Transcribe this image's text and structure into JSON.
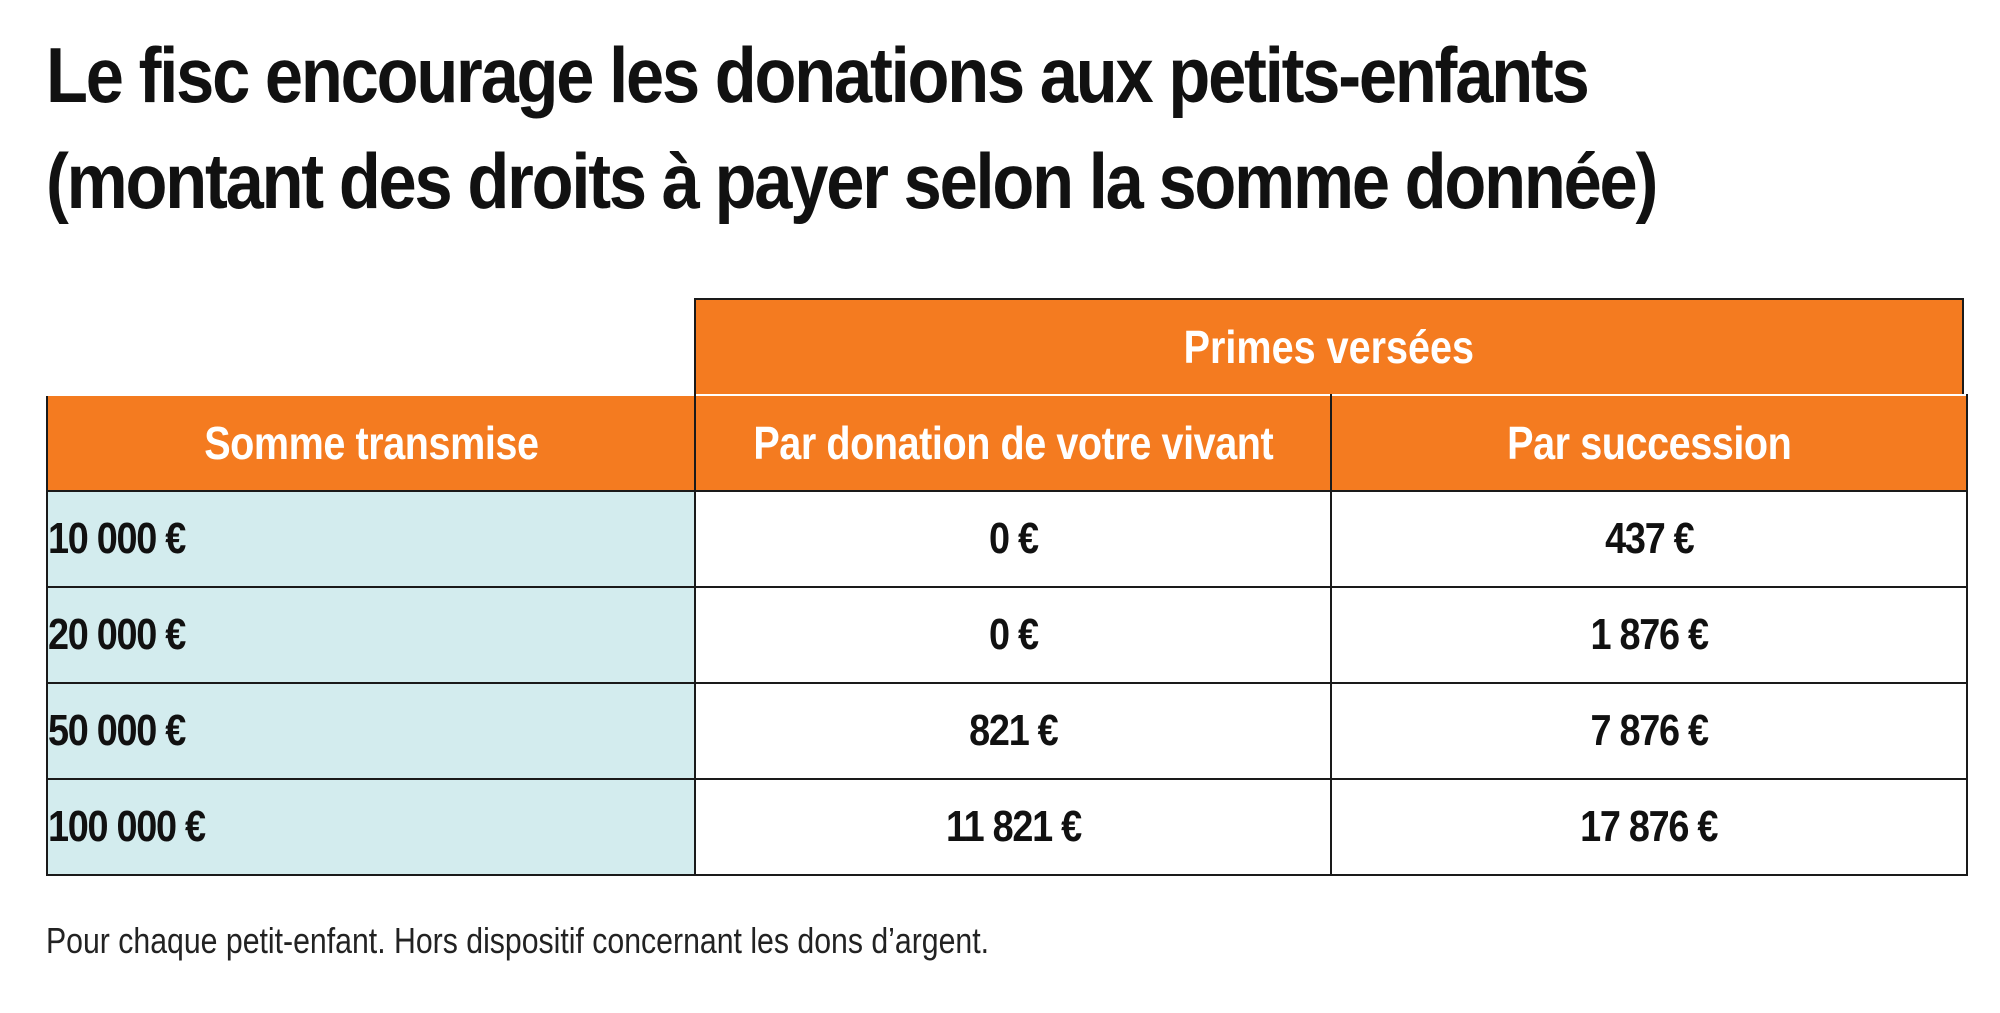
{
  "title": {
    "line1": "Le fisc encourage les donations aux petits-enfants",
    "line2": "(montant des droits à payer selon la somme donnée)"
  },
  "table": {
    "super_header": "Primes versées",
    "columns": [
      "Somme transmise",
      "Par donation de votre vivant",
      "Par succession"
    ],
    "rows": [
      [
        "10 000 €",
        "0 €",
        "437 €"
      ],
      [
        "20 000 €",
        "0 €",
        "1 876 €"
      ],
      [
        "50 000 €",
        "821 €",
        "7 876 €"
      ],
      [
        "100 000 €",
        "11 821 €",
        "17 876 €"
      ]
    ]
  },
  "footnote": "Pour chaque petit-enfant. Hors dispositif concernant les dons d’argent.",
  "colors": {
    "header_orange": "#f47b20",
    "first_column_blue": "#d3ecee",
    "border": "#1a1a1a"
  }
}
